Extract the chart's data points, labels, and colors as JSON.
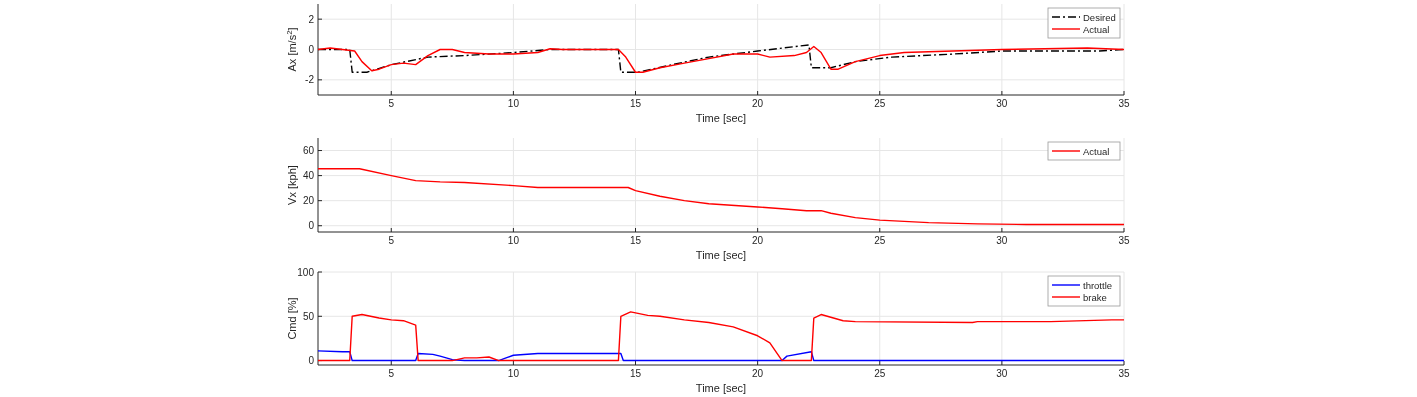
{
  "chart_data": [
    {
      "type": "line",
      "ylabel": "Ax [m/s$^{2}$]",
      "xlabel": "Time [sec]",
      "xlim": [
        2,
        35
      ],
      "xticks": [
        5,
        10,
        15,
        20,
        25,
        30,
        35
      ],
      "ylim": [
        -3,
        3
      ],
      "yticks": [
        -2,
        0,
        2
      ],
      "grid": true,
      "legend": "top right",
      "series": [
        {
          "name": "Desired",
          "color": "#000000",
          "line_style": "dashed",
          "x": [
            2,
            3.3,
            3.4,
            4.0,
            5,
            6.5,
            8,
            10,
            11.5,
            14.3,
            14.4,
            15.1,
            16.5,
            18,
            20,
            22.1,
            22.2,
            23,
            24,
            25.5,
            28,
            30,
            34,
            35
          ],
          "values": [
            0,
            0,
            -1.5,
            -1.5,
            -1.0,
            -0.5,
            -0.4,
            -0.2,
            0,
            0,
            -1.5,
            -1.5,
            -1.0,
            -0.5,
            -0.1,
            0.3,
            -1.2,
            -1.2,
            -0.8,
            -0.5,
            -0.3,
            -0.1,
            -0.1,
            0
          ]
        },
        {
          "name": "Actual",
          "color": "#ff0000",
          "line_style": "solid",
          "x": [
            2,
            2.5,
            3,
            3.5,
            3.8,
            4.2,
            4.5,
            5,
            5.5,
            6,
            6.5,
            7,
            7.5,
            8,
            9,
            10,
            11,
            11.5,
            12,
            14.3,
            14.6,
            15,
            15.3,
            16,
            17,
            18,
            19,
            20,
            20.5,
            21.5,
            22,
            22.3,
            22.6,
            23,
            23.3,
            24,
            25,
            26,
            28,
            30,
            33.5,
            35
          ],
          "values": [
            0,
            0.1,
            0,
            -0.1,
            -0.8,
            -1.4,
            -1.3,
            -1.0,
            -0.9,
            -1.0,
            -0.4,
            0,
            0,
            -0.2,
            -0.3,
            -0.3,
            -0.2,
            0.05,
            0,
            0,
            -0.5,
            -1.5,
            -1.5,
            -1.2,
            -0.9,
            -0.6,
            -0.3,
            -0.3,
            -0.5,
            -0.4,
            -0.2,
            0.2,
            -0.2,
            -1.3,
            -1.3,
            -0.8,
            -0.4,
            -0.2,
            -0.1,
            0,
            0.1,
            0
          ]
        }
      ]
    },
    {
      "type": "line",
      "ylabel": "Vx [kph]",
      "xlabel": "Time [sec]",
      "xlim": [
        2,
        35
      ],
      "xticks": [
        5,
        10,
        15,
        20,
        25,
        30,
        35
      ],
      "ylim": [
        -5,
        70
      ],
      "yticks": [
        0,
        20,
        40,
        60
      ],
      "grid": true,
      "legend": "top right",
      "series": [
        {
          "name": "Actual",
          "color": "#ff0000",
          "line_style": "solid",
          "x": [
            2,
            3.7,
            5,
            6,
            7,
            8,
            10,
            11,
            14.7,
            15,
            16,
            17,
            18,
            20,
            21,
            22,
            22.6,
            23,
            24,
            25,
            27,
            29,
            31,
            33,
            35
          ],
          "values": [
            45.5,
            45.5,
            40,
            36,
            35,
            34.5,
            32,
            30.5,
            30.5,
            28,
            23.5,
            20,
            17.5,
            15,
            13.5,
            12,
            12,
            10,
            6.5,
            4.5,
            2.5,
            1.5,
            1,
            1,
            1
          ]
        }
      ]
    },
    {
      "type": "line",
      "ylabel": "Cmd [%]",
      "xlabel": "Time [sec]",
      "xlim": [
        2,
        35
      ],
      "xticks": [
        5,
        10,
        15,
        20,
        25,
        30,
        35
      ],
      "ylim": [
        -5,
        100
      ],
      "yticks": [
        0,
        50,
        100
      ],
      "grid": true,
      "legend": "top right",
      "series": [
        {
          "name": "throttle",
          "color": "#0000ff",
          "line_style": "solid",
          "x": [
            2,
            3,
            3.3,
            3.4,
            6,
            6.1,
            6.7,
            7,
            7.5,
            8,
            9.4,
            9.7,
            10,
            11,
            12,
            14.4,
            14.5,
            21,
            21.2,
            22.2,
            22.3,
            35
          ],
          "values": [
            11,
            10,
            10,
            0,
            0,
            8,
            7,
            5,
            1,
            0,
            0,
            3,
            6,
            8,
            8,
            8,
            0,
            0,
            5,
            10,
            0,
            0
          ]
        },
        {
          "name": "brake",
          "color": "#ff0000",
          "line_style": "solid",
          "x": [
            2,
            3.3,
            3.4,
            3.8,
            4.5,
            5,
            5.5,
            6,
            6.1,
            7.5,
            8,
            8.5,
            9,
            9.4,
            14.3,
            14.4,
            14.8,
            15.5,
            16,
            17,
            18,
            19,
            20,
            20.5,
            21,
            22.2,
            22.3,
            22.6,
            23.5,
            24,
            28.8,
            29,
            32,
            34.5,
            35
          ],
          "values": [
            0,
            0,
            50,
            52,
            48,
            46,
            45,
            40,
            0,
            0,
            3,
            3,
            4,
            0,
            0,
            50,
            55,
            51,
            50,
            46,
            43,
            38,
            28,
            20,
            0,
            0,
            48,
            52,
            45,
            44,
            43,
            44,
            44,
            46,
            46
          ]
        }
      ]
    }
  ]
}
